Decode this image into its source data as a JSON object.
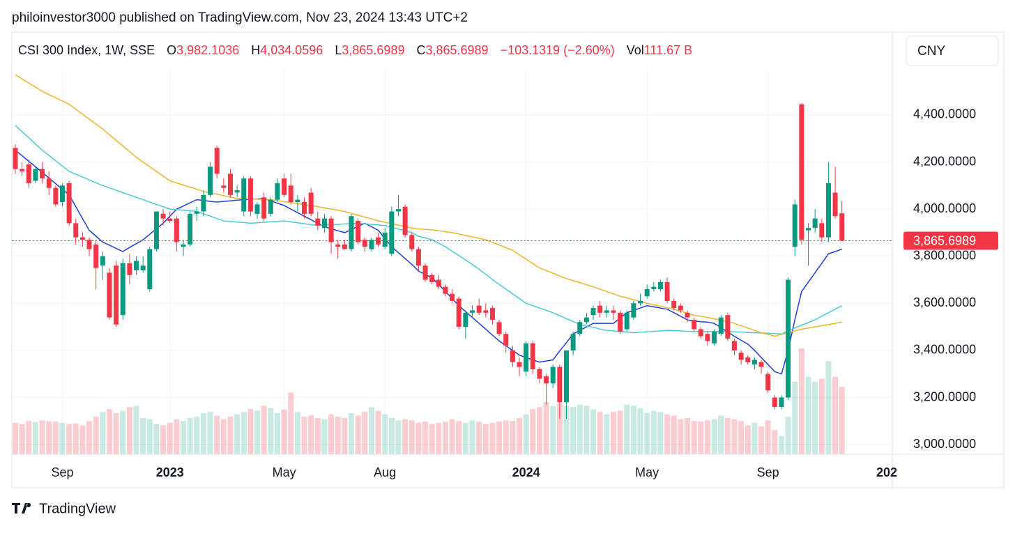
{
  "page_title": "philoinvestor3000 published on TradingView.com, Nov 23, 2024 13:43 UTC+2",
  "header": {
    "symbol": "CSI 300 Index, 1W, SSE",
    "ohlc": [
      {
        "key": "O",
        "value": "3,982.1036"
      },
      {
        "key": "H",
        "value": "4,034.0596"
      },
      {
        "key": "L",
        "value": "3,865.6989"
      },
      {
        "key": "C",
        "value": "3,865.6989"
      }
    ],
    "change": "−103.1319 (−2.60%)",
    "volume_key": "Vol",
    "volume": "111.67 B"
  },
  "currency": "CNY",
  "brand": "TradingView",
  "chart_data": {
    "type": "candlestick",
    "categories": [
      null,
      null,
      null,
      null,
      null,
      null,
      null,
      "Sep",
      null,
      null,
      null,
      null,
      null,
      null,
      null,
      null,
      null,
      null,
      null,
      null,
      null,
      null,
      null,
      "2023",
      null,
      null,
      null,
      null,
      null,
      null,
      null,
      null,
      null,
      null,
      null,
      null,
      null,
      null,
      null,
      null,
      "May",
      null,
      null,
      null,
      null,
      null,
      null,
      null,
      null,
      null,
      null,
      null,
      null,
      null,
      null,
      "Aug",
      null,
      null,
      null,
      null,
      null,
      null,
      null,
      null,
      null,
      null,
      null,
      null,
      null,
      null,
      null,
      null,
      null,
      null,
      null,
      null,
      "2024",
      null,
      null,
      null,
      null,
      null,
      null,
      null,
      null,
      null,
      null,
      null,
      null,
      null,
      null,
      null,
      null,
      null,
      "May",
      null,
      null,
      null,
      null,
      null,
      null,
      null,
      null,
      null,
      null,
      null,
      null,
      null,
      null,
      null,
      null,
      null,
      "Sep",
      null,
      null,
      null,
      null,
      null,
      null,
      null,
      null,
      null,
      null,
      null
    ],
    "x_axis_cut_label": "202",
    "open": [
      4260,
      4170,
      4190,
      4120,
      4170,
      4130,
      4090,
      4030,
      4110,
      3940,
      3880,
      3870,
      3850,
      3760,
      3730,
      3760,
      3550,
      3770,
      3740,
      3740,
      3660,
      3830,
      3980,
      3960,
      3960,
      3840,
      3850,
      3980,
      3990,
      4060,
      4260,
      4100,
      4150,
      4070,
      3990,
      4130,
      3980,
      4050,
      3980,
      4040,
      4130,
      4100,
      4030,
      4030,
      4070,
      3960,
      3920,
      3960,
      3850,
      3850,
      3830,
      3950,
      3870,
      3830,
      3880,
      3840,
      3810,
      3990,
      4010,
      3890,
      3830,
      3760,
      3720,
      3700,
      3670,
      3640,
      3620,
      3500,
      3560,
      3590,
      3570,
      3580,
      3520,
      3470,
      3400,
      3350,
      3310,
      3430,
      3320,
      3290,
      3260,
      3330,
      3180,
      3400,
      3470,
      3520,
      3550,
      3590,
      3560,
      3570,
      3560,
      3490,
      3540,
      3600,
      3630,
      3660,
      3660,
      3690,
      3610,
      3590,
      3560,
      3530,
      3490,
      3470,
      3430,
      3470,
      3550,
      3440,
      3390,
      3370,
      3340,
      3350,
      3300,
      3200,
      3160,
      3200,
      3840,
      4445,
      3910,
      3920,
      3940,
      3880,
      4070,
      3982.1036
    ],
    "high": [
      4275,
      4200,
      4210,
      4180,
      4200,
      4160,
      4100,
      4110,
      4120,
      3960,
      3900,
      3880,
      3870,
      3820,
      3750,
      3780,
      3790,
      3810,
      3800,
      3800,
      3840,
      3990,
      4000,
      3990,
      3970,
      3870,
      3990,
      4010,
      4080,
      4200,
      4270,
      4130,
      4170,
      4100,
      4140,
      4140,
      4030,
      4070,
      4050,
      4130,
      4150,
      4150,
      4060,
      4050,
      4090,
      3990,
      3980,
      3970,
      3870,
      3870,
      3980,
      3960,
      3880,
      3880,
      3900,
      3920,
      4010,
      4060,
      4020,
      3900,
      3840,
      3770,
      3730,
      3720,
      3680,
      3660,
      3630,
      3570,
      3590,
      3620,
      3600,
      3590,
      3530,
      3480,
      3420,
      3370,
      3440,
      3440,
      3330,
      3300,
      3340,
      3340,
      3400,
      3480,
      3530,
      3560,
      3590,
      3610,
      3590,
      3590,
      3570,
      3570,
      3610,
      3640,
      3680,
      3690,
      3700,
      3710,
      3620,
      3600,
      3570,
      3540,
      3500,
      3480,
      3490,
      3550,
      3560,
      3450,
      3400,
      3380,
      3370,
      3360,
      3310,
      3210,
      3210,
      3710,
      4040,
      4450,
      3940,
      4000,
      3960,
      4200,
      4180,
      4034.0596
    ],
    "low": [
      4150,
      4140,
      4090,
      4110,
      4110,
      4060,
      4010,
      4010,
      3930,
      3850,
      3840,
      3800,
      3660,
      3700,
      3530,
      3500,
      3530,
      3680,
      3720,
      3730,
      3650,
      3820,
      3930,
      3940,
      3820,
      3800,
      3840,
      3950,
      3970,
      4050,
      4130,
      4070,
      4050,
      4050,
      3970,
      3970,
      3960,
      3950,
      3970,
      4030,
      4050,
      4020,
      3990,
      3960,
      3970,
      3910,
      3900,
      3810,
      3790,
      3830,
      3820,
      3850,
      3820,
      3820,
      3840,
      3830,
      3800,
      3970,
      3880,
      3820,
      3740,
      3690,
      3680,
      3660,
      3630,
      3600,
      3490,
      3450,
      3540,
      3550,
      3540,
      3510,
      3460,
      3390,
      3330,
      3290,
      3290,
      3300,
      3260,
      3170,
      3240,
      3110,
      3110,
      3380,
      3460,
      3510,
      3530,
      3540,
      3540,
      3530,
      3470,
      3480,
      3530,
      3590,
      3620,
      3650,
      3650,
      3600,
      3570,
      3560,
      3520,
      3480,
      3450,
      3420,
      3420,
      3460,
      3440,
      3380,
      3340,
      3340,
      3320,
      3300,
      3220,
      3150,
      3150,
      3190,
      3800,
      3850,
      3760,
      3900,
      3860,
      3860,
      3960,
      3865.6989
    ],
    "close": [
      4170,
      4160,
      4110,
      4170,
      4130,
      4090,
      4020,
      4100,
      3940,
      3880,
      3870,
      3830,
      3750,
      3800,
      3540,
      3510,
      3770,
      3720,
      3780,
      3760,
      3830,
      3990,
      3960,
      3950,
      3860,
      3850,
      3980,
      3990,
      4060,
      4180,
      4150,
      4090,
      4060,
      4080,
      4130,
      3990,
      4020,
      3960,
      4040,
      4110,
      4060,
      4030,
      4040,
      3980,
      3980,
      3930,
      3960,
      3860,
      3840,
      3830,
      3970,
      3860,
      3840,
      3870,
      3850,
      3900,
      3990,
      4000,
      3890,
      3830,
      3760,
      3700,
      3690,
      3670,
      3640,
      3610,
      3500,
      3560,
      3570,
      3560,
      3560,
      3530,
      3470,
      3420,
      3350,
      3330,
      3430,
      3320,
      3280,
      3260,
      3330,
      3180,
      3400,
      3470,
      3520,
      3540,
      3580,
      3560,
      3570,
      3560,
      3480,
      3560,
      3600,
      3610,
      3660,
      3670,
      3690,
      3610,
      3580,
      3570,
      3540,
      3490,
      3460,
      3440,
      3480,
      3540,
      3450,
      3400,
      3360,
      3350,
      3360,
      3330,
      3230,
      3160,
      3200,
      3700,
      4020,
      3870,
      3920,
      3960,
      3880,
      4110,
      3970,
      3865.6989
    ],
    "volume": [
      52,
      50,
      55,
      53,
      56,
      55,
      54,
      52,
      50,
      51,
      48,
      55,
      62,
      70,
      75,
      68,
      72,
      78,
      80,
      60,
      58,
      50,
      48,
      52,
      58,
      55,
      60,
      62,
      68,
      70,
      64,
      58,
      62,
      66,
      70,
      75,
      72,
      80,
      76,
      68,
      74,
      102,
      70,
      62,
      64,
      60,
      58,
      66,
      62,
      60,
      68,
      64,
      70,
      78,
      72,
      66,
      60,
      56,
      58,
      56,
      52,
      54,
      50,
      52,
      54,
      58,
      55,
      52,
      56,
      54,
      50,
      52,
      54,
      56,
      55,
      60,
      66,
      75,
      78,
      86,
      80,
      84,
      80,
      78,
      82,
      80,
      74,
      70,
      66,
      70,
      72,
      82,
      80,
      76,
      68,
      72,
      70,
      66,
      64,
      58,
      60,
      55,
      54,
      56,
      58,
      64,
      60,
      58,
      55,
      48,
      52,
      46,
      56,
      40,
      30,
      62,
      120,
      175,
      128,
      120,
      125,
      154,
      128,
      111.67
    ],
    "up_color": "#089981",
    "down_color": "#f23645",
    "lines": [
      {
        "color": "#1e3fd6",
        "values": [
          4250,
          4227,
          4203,
          4180,
          4156,
          4132,
          4108,
          4084,
          4060,
          4010,
          3960,
          3910,
          3885,
          3860,
          3847,
          3833,
          3820,
          3837,
          3853,
          3870,
          3893,
          3917,
          3940,
          3970,
          4000,
          4013,
          4027,
          4040,
          4037,
          4033,
          4030,
          4033,
          4035,
          4038,
          4040,
          4042,
          4043,
          4045,
          4035,
          4025,
          4015,
          4000,
          3985,
          3970,
          3955,
          3940,
          3925,
          3917,
          3908,
          3900,
          3913,
          3927,
          3940,
          3925,
          3910,
          3875,
          3840,
          3815,
          3790,
          3765,
          3737,
          3722,
          3708,
          3680,
          3650,
          3620,
          3590,
          3565,
          3540,
          3515,
          3490,
          3465,
          3440,
          3420,
          3400,
          3380,
          3370,
          3360,
          3350,
          3355,
          3360,
          3397,
          3433,
          3470,
          3485,
          3500,
          3515,
          3515,
          3515,
          3515,
          3538,
          3560,
          3570,
          3580,
          3590,
          3585,
          3580,
          3575,
          3560,
          3545,
          3530,
          3525,
          3522,
          3520,
          3515,
          3497,
          3478,
          3460,
          3443,
          3427,
          3400,
          3370,
          3340,
          3310,
          3300,
          3400,
          3530,
          3650,
          3690,
          3730,
          3770,
          3810,
          3820,
          3830
        ]
      },
      {
        "color": "#4cc9d8",
        "values": [
          4355,
          4329,
          4303,
          4276,
          4250,
          4228,
          4205,
          4183,
          4160,
          4148,
          4136,
          4124,
          4112,
          4100,
          4090,
          4080,
          4070,
          4060,
          4050,
          4040,
          4030,
          4020,
          4010,
          4000,
          3998,
          3995,
          3993,
          3990,
          3980,
          3970,
          3960,
          3950,
          3948,
          3945,
          3943,
          3940,
          3942,
          3944,
          3946,
          3948,
          3950,
          3946,
          3942,
          3938,
          3934,
          3930,
          3932,
          3933,
          3935,
          3937,
          3938,
          3940,
          3938,
          3935,
          3933,
          3930,
          3923,
          3915,
          3908,
          3900,
          3885,
          3878,
          3870,
          3855,
          3840,
          3821,
          3803,
          3784,
          3765,
          3744,
          3723,
          3701,
          3680,
          3660,
          3640,
          3620,
          3600,
          3590,
          3580,
          3570,
          3560,
          3548,
          3535,
          3523,
          3510,
          3504,
          3498,
          3491,
          3485,
          3483,
          3480,
          3478,
          3475,
          3477,
          3479,
          3481,
          3483,
          3485,
          3484,
          3483,
          3481,
          3480,
          3480,
          3480,
          3480,
          3480,
          3480,
          3479,
          3478,
          3476,
          3475,
          3474,
          3473,
          3471,
          3470,
          3483,
          3495,
          3507,
          3518,
          3530,
          3545,
          3560,
          3575,
          3590
        ]
      },
      {
        "color": "#f0b429",
        "values": [
          4570,
          4553,
          4535,
          4518,
          4500,
          4486,
          4473,
          4459,
          4445,
          4424,
          4403,
          4382,
          4361,
          4340,
          4316,
          4292,
          4268,
          4244,
          4220,
          4200,
          4180,
          4160,
          4140,
          4120,
          4111,
          4102,
          4093,
          4084,
          4075,
          4069,
          4063,
          4057,
          4051,
          4045,
          4044,
          4043,
          4042,
          4041,
          4040,
          4036,
          4032,
          4028,
          4023,
          4019,
          4015,
          4010,
          4005,
          4000,
          3995,
          3990,
          3982,
          3974,
          3966,
          3958,
          3950,
          3944,
          3938,
          3932,
          3926,
          3920,
          3916,
          3914,
          3912,
          3908,
          3904,
          3900,
          3894,
          3888,
          3882,
          3876,
          3870,
          3859,
          3848,
          3836,
          3825,
          3806,
          3788,
          3769,
          3750,
          3739,
          3728,
          3716,
          3705,
          3696,
          3688,
          3679,
          3670,
          3660,
          3650,
          3640,
          3630,
          3623,
          3615,
          3608,
          3600,
          3594,
          3588,
          3581,
          3575,
          3566,
          3558,
          3549,
          3545,
          3540,
          3534,
          3528,
          3521,
          3515,
          3505,
          3495,
          3485,
          3475,
          3468,
          3460,
          3468,
          3475,
          3483,
          3490,
          3495,
          3500,
          3505,
          3510,
          3515,
          3520
        ]
      }
    ],
    "ylim": [
      2959,
      4592
    ],
    "yticks": [
      {
        "value": 3000,
        "label": "3,000.0000"
      },
      {
        "value": 3200,
        "label": "3,200.0000"
      },
      {
        "value": 3400,
        "label": "3,400.0000"
      },
      {
        "value": 3600,
        "label": "3,600.0000"
      },
      {
        "value": 3800,
        "label": "3,800.0000"
      },
      {
        "value": 4000,
        "label": "4,000.0000"
      },
      {
        "value": 4200,
        "label": "4,200.0000"
      },
      {
        "value": 4400,
        "label": "4,400.0000"
      }
    ],
    "last_price_label": "3,865.6989",
    "grid": true
  }
}
